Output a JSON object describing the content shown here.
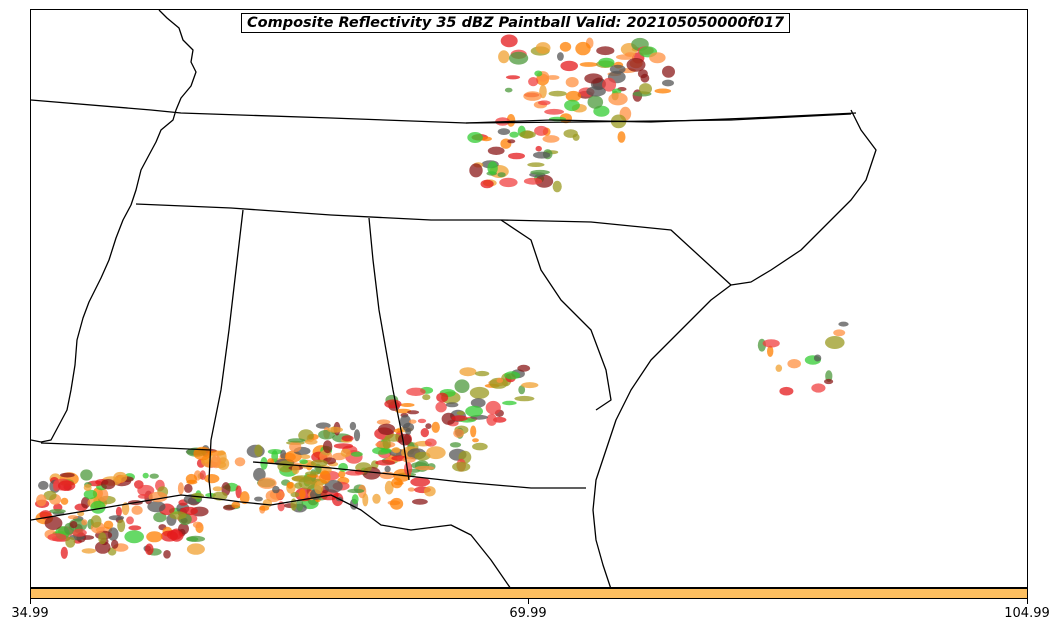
{
  "title": "Composite Reflectivity 35 dBZ Paintball Valid: 202105050000f017",
  "colorbar": {
    "color": "#fdbf60",
    "ticks": [
      "34.99",
      "69.99",
      "104.99"
    ]
  },
  "member_colors": [
    "#e41a1c",
    "#ff7f00",
    "#33cc33",
    "#4d9a3c",
    "#8b1a1a",
    "#9a9a20",
    "#f0a030",
    "#555555",
    "#f04040",
    "#ff9040"
  ]
}
